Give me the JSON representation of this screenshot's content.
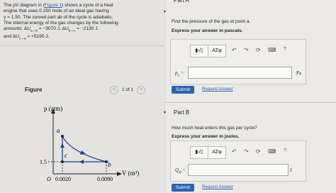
{
  "problem": {
    "lines": [
      "The pV diagram in (",
      "Figure 1",
      ") shows a cycle of a heat",
      "engine that uses 0.250 mole of an ideal gas having",
      "γ = 1.50. The curved part ab of the cycle is adiabatic.",
      "The internal energy of the gas changes by the following"
    ],
    "prefix1": "amounts:",
    "prefix2": "and",
    "changes": [
      {
        "symbol": "ΔU",
        "subscript": "a→b",
        "value": "= −3070 J,"
      },
      {
        "symbol": "ΔU",
        "subscript": "b→c",
        "value": "= −2130 J,"
      },
      {
        "symbol": "ΔU",
        "subscript": "c→a",
        "value": "= +5190 J."
      }
    ]
  },
  "figure": {
    "title": "Figure",
    "pager": "1 of 1",
    "prev": "<",
    "next": ">",
    "ylabel": "p (atm)",
    "xlabel": "V (m³)",
    "points": [
      "a",
      "c",
      "b"
    ],
    "ytick": "1.5",
    "origin": "O",
    "xticks": [
      "0.0020",
      "0.0090"
    ]
  },
  "parts": [
    {
      "title": "Part A",
      "question": "Find the pressure of the gas at point a.",
      "instruction": "Express your answer in pascals.",
      "toolbar": [
        "ΑΣφ",
        "?"
      ],
      "answer": {
        "symbol": "p",
        "subscript": "a",
        "suffix": "=",
        "unit": "Pa"
      },
      "submit": "Submit",
      "request": "Request Answer"
    },
    {
      "title": "Part B",
      "question": "How much heat enters this gas per cycle?",
      "instruction": "Express your answer in joules.",
      "toolbar": [
        "ΑΣφ",
        "?"
      ],
      "answer": {
        "symbol": "Q",
        "subscript": "H",
        "suffix": "=",
        "unit": "J"
      },
      "submit": "Submit",
      "request": "Request Answer"
    }
  ]
}
